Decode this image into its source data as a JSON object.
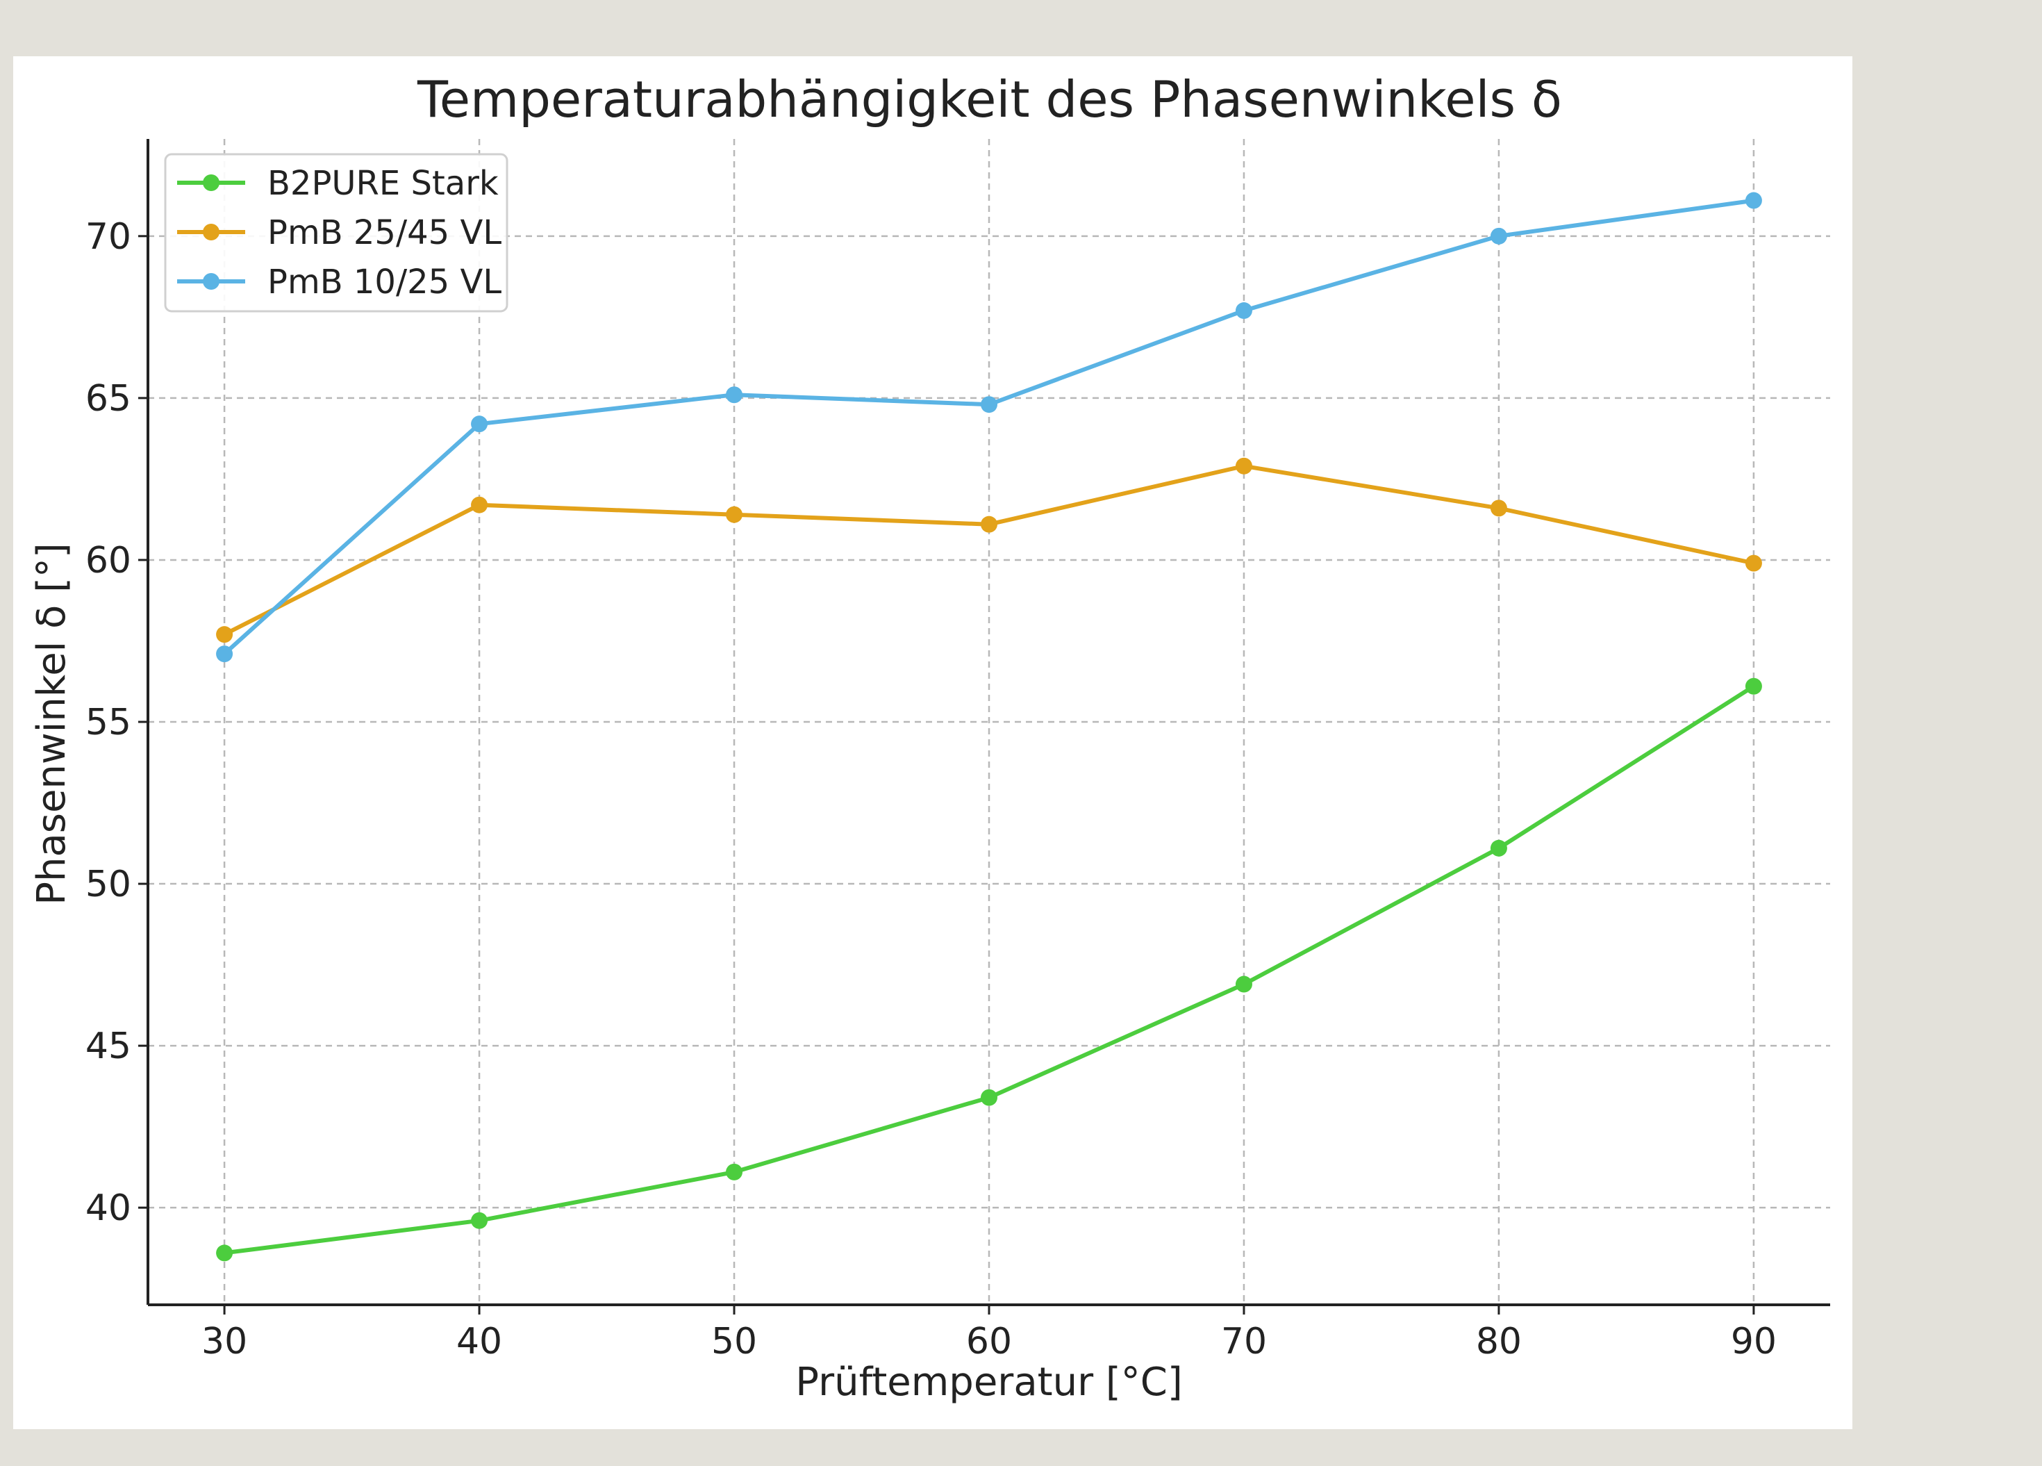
{
  "chart_data": {
    "type": "line",
    "title": "Temperaturabhängigkeit des Phasenwinkels δ",
    "xlabel": "Prüftemperatur [°C]",
    "ylabel": "Phasenwinkel δ [°]",
    "x": [
      30,
      40,
      50,
      60,
      70,
      80,
      90
    ],
    "xticks": [
      30,
      40,
      50,
      60,
      70,
      80,
      90
    ],
    "yticks": [
      40,
      45,
      50,
      55,
      60,
      65,
      70
    ],
    "xlim": [
      27,
      93
    ],
    "ylim": [
      37,
      73
    ],
    "grid": true,
    "legend_position": "top-left",
    "series": [
      {
        "name": "B2PURE Stark",
        "color": "#4ccd3e",
        "values": [
          38.6,
          39.6,
          41.1,
          43.4,
          46.9,
          51.1,
          56.1
        ]
      },
      {
        "name": "PmB 25/45 VL",
        "color": "#e3a21a",
        "values": [
          57.7,
          61.7,
          61.4,
          61.1,
          62.9,
          61.6,
          59.9
        ]
      },
      {
        "name": "PmB 10/25 VL",
        "color": "#5ab3e4",
        "values": [
          57.1,
          64.2,
          65.1,
          64.8,
          67.7,
          70.0,
          71.1
        ]
      }
    ]
  }
}
